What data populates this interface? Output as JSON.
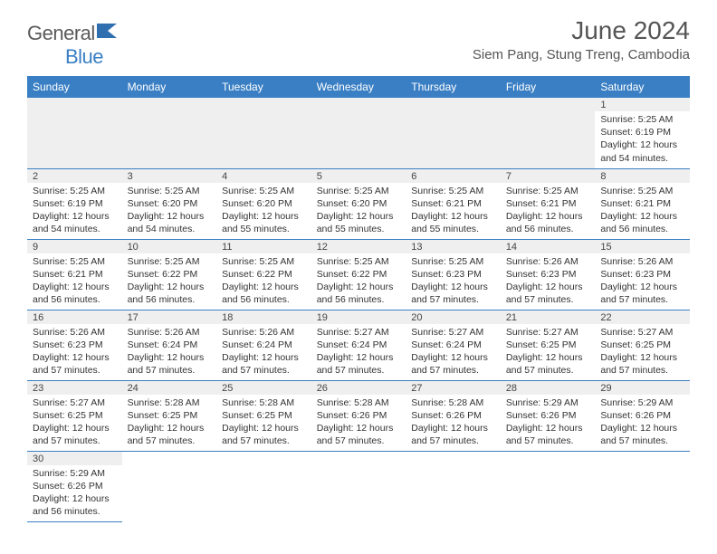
{
  "logo": {
    "word1": "General",
    "word2": "Blue"
  },
  "title": "June 2024",
  "location": "Siem Pang, Stung Treng, Cambodia",
  "colors": {
    "header_bg": "#3a7fc4",
    "header_text": "#ffffff",
    "daynum_bg": "#efefef",
    "border": "#3a7fc4",
    "text": "#333333",
    "title_text": "#555555"
  },
  "weekdays": [
    "Sunday",
    "Monday",
    "Tuesday",
    "Wednesday",
    "Thursday",
    "Friday",
    "Saturday"
  ],
  "labels": {
    "sunrise": "Sunrise:",
    "sunset": "Sunset:",
    "daylight": "Daylight:"
  },
  "first_weekday_index": 6,
  "days": [
    {
      "n": 1,
      "sunrise": "5:25 AM",
      "sunset": "6:19 PM",
      "daylight": "12 hours and 54 minutes."
    },
    {
      "n": 2,
      "sunrise": "5:25 AM",
      "sunset": "6:19 PM",
      "daylight": "12 hours and 54 minutes."
    },
    {
      "n": 3,
      "sunrise": "5:25 AM",
      "sunset": "6:20 PM",
      "daylight": "12 hours and 54 minutes."
    },
    {
      "n": 4,
      "sunrise": "5:25 AM",
      "sunset": "6:20 PM",
      "daylight": "12 hours and 55 minutes."
    },
    {
      "n": 5,
      "sunrise": "5:25 AM",
      "sunset": "6:20 PM",
      "daylight": "12 hours and 55 minutes."
    },
    {
      "n": 6,
      "sunrise": "5:25 AM",
      "sunset": "6:21 PM",
      "daylight": "12 hours and 55 minutes."
    },
    {
      "n": 7,
      "sunrise": "5:25 AM",
      "sunset": "6:21 PM",
      "daylight": "12 hours and 56 minutes."
    },
    {
      "n": 8,
      "sunrise": "5:25 AM",
      "sunset": "6:21 PM",
      "daylight": "12 hours and 56 minutes."
    },
    {
      "n": 9,
      "sunrise": "5:25 AM",
      "sunset": "6:21 PM",
      "daylight": "12 hours and 56 minutes."
    },
    {
      "n": 10,
      "sunrise": "5:25 AM",
      "sunset": "6:22 PM",
      "daylight": "12 hours and 56 minutes."
    },
    {
      "n": 11,
      "sunrise": "5:25 AM",
      "sunset": "6:22 PM",
      "daylight": "12 hours and 56 minutes."
    },
    {
      "n": 12,
      "sunrise": "5:25 AM",
      "sunset": "6:22 PM",
      "daylight": "12 hours and 56 minutes."
    },
    {
      "n": 13,
      "sunrise": "5:25 AM",
      "sunset": "6:23 PM",
      "daylight": "12 hours and 57 minutes."
    },
    {
      "n": 14,
      "sunrise": "5:26 AM",
      "sunset": "6:23 PM",
      "daylight": "12 hours and 57 minutes."
    },
    {
      "n": 15,
      "sunrise": "5:26 AM",
      "sunset": "6:23 PM",
      "daylight": "12 hours and 57 minutes."
    },
    {
      "n": 16,
      "sunrise": "5:26 AM",
      "sunset": "6:23 PM",
      "daylight": "12 hours and 57 minutes."
    },
    {
      "n": 17,
      "sunrise": "5:26 AM",
      "sunset": "6:24 PM",
      "daylight": "12 hours and 57 minutes."
    },
    {
      "n": 18,
      "sunrise": "5:26 AM",
      "sunset": "6:24 PM",
      "daylight": "12 hours and 57 minutes."
    },
    {
      "n": 19,
      "sunrise": "5:27 AM",
      "sunset": "6:24 PM",
      "daylight": "12 hours and 57 minutes."
    },
    {
      "n": 20,
      "sunrise": "5:27 AM",
      "sunset": "6:24 PM",
      "daylight": "12 hours and 57 minutes."
    },
    {
      "n": 21,
      "sunrise": "5:27 AM",
      "sunset": "6:25 PM",
      "daylight": "12 hours and 57 minutes."
    },
    {
      "n": 22,
      "sunrise": "5:27 AM",
      "sunset": "6:25 PM",
      "daylight": "12 hours and 57 minutes."
    },
    {
      "n": 23,
      "sunrise": "5:27 AM",
      "sunset": "6:25 PM",
      "daylight": "12 hours and 57 minutes."
    },
    {
      "n": 24,
      "sunrise": "5:28 AM",
      "sunset": "6:25 PM",
      "daylight": "12 hours and 57 minutes."
    },
    {
      "n": 25,
      "sunrise": "5:28 AM",
      "sunset": "6:25 PM",
      "daylight": "12 hours and 57 minutes."
    },
    {
      "n": 26,
      "sunrise": "5:28 AM",
      "sunset": "6:26 PM",
      "daylight": "12 hours and 57 minutes."
    },
    {
      "n": 27,
      "sunrise": "5:28 AM",
      "sunset": "6:26 PM",
      "daylight": "12 hours and 57 minutes."
    },
    {
      "n": 28,
      "sunrise": "5:29 AM",
      "sunset": "6:26 PM",
      "daylight": "12 hours and 57 minutes."
    },
    {
      "n": 29,
      "sunrise": "5:29 AM",
      "sunset": "6:26 PM",
      "daylight": "12 hours and 57 minutes."
    },
    {
      "n": 30,
      "sunrise": "5:29 AM",
      "sunset": "6:26 PM",
      "daylight": "12 hours and 56 minutes."
    }
  ]
}
